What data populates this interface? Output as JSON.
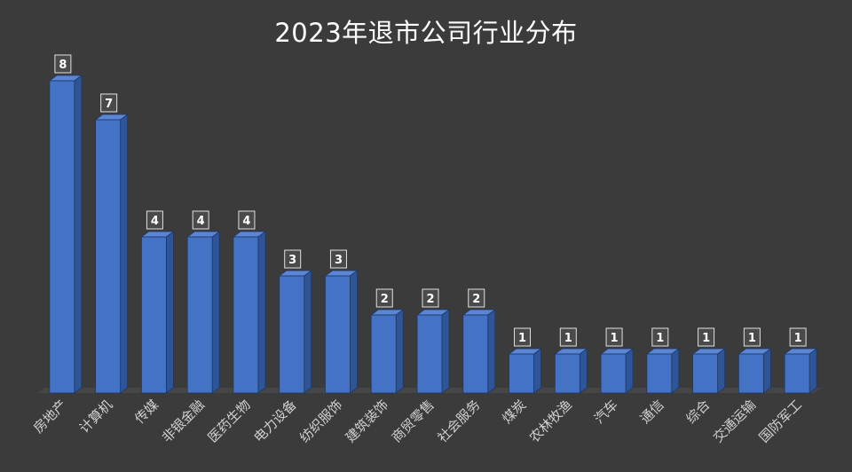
{
  "colors": {
    "background": "#3b3b3b",
    "bar_front": "#4472c4",
    "bar_side": "#2f5597",
    "bar_top": "#5b86d6",
    "bar_edge": "#1f3864",
    "label_box": "#4a4a4a",
    "label_border": "#e0e0e0",
    "floor": "#4f4f4f"
  },
  "chart_data": {
    "type": "bar",
    "title": "2023年退市公司行业分布",
    "xlabel": "",
    "ylabel": "",
    "ylim": [
      0,
      8
    ],
    "grid": false,
    "legend": "none",
    "style": "3d-column",
    "data_labels": true,
    "categories": [
      "房地产",
      "计算机",
      "传媒",
      "非银金融",
      "医药生物",
      "电力设备",
      "纺织服饰",
      "建筑装饰",
      "商贸零售",
      "社会服务",
      "煤炭",
      "农林牧渔",
      "汽车",
      "通信",
      "综合",
      "交通运输",
      "国防军工"
    ],
    "values": [
      8,
      7,
      4,
      4,
      4,
      3,
      3,
      2,
      2,
      2,
      1,
      1,
      1,
      1,
      1,
      1,
      1
    ]
  }
}
